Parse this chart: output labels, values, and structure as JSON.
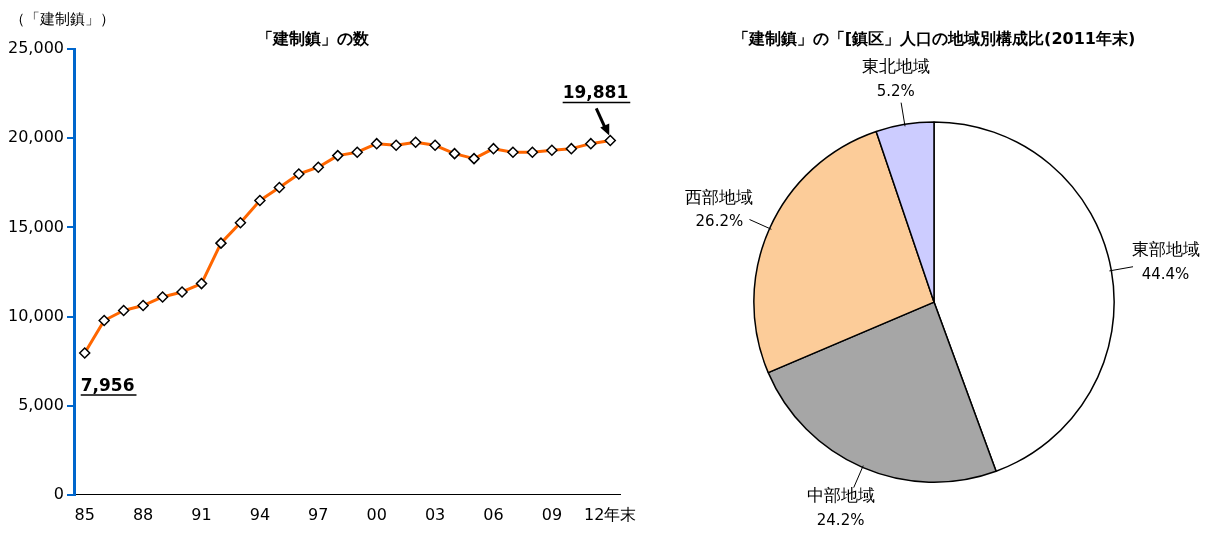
{
  "chart_data": [
    {
      "type": "line",
      "title": "「建制鎮」の数",
      "ylabel": "（「建制鎮」）",
      "categories": [
        "85",
        null,
        null,
        "88",
        null,
        null,
        "91",
        null,
        null,
        "94",
        null,
        null,
        "97",
        null,
        null,
        "00",
        null,
        null,
        "03",
        null,
        null,
        "06",
        null,
        null,
        "09",
        null,
        null,
        "12年末"
      ],
      "series": [
        {
          "color": "#ff6600",
          "values": [
            7956,
            9780,
            10340,
            10620,
            11100,
            11380,
            11850,
            14120,
            15260,
            16510,
            17240,
            18000,
            18380,
            19030,
            19220,
            19700,
            19610,
            19780,
            19610,
            19140,
            18860,
            19420,
            19220,
            19220,
            19330,
            19420,
            19700,
            19881
          ],
          "value_labels": [
            "7,956",
            null,
            null,
            null,
            null,
            null,
            null,
            null,
            null,
            null,
            null,
            null,
            null,
            null,
            null,
            null,
            null,
            null,
            null,
            null,
            null,
            null,
            null,
            null,
            null,
            null,
            null,
            "19,881"
          ]
        }
      ],
      "ylim": [
        0,
        25000
      ],
      "yticks": [
        {
          "value": 0,
          "label": "0"
        },
        {
          "value": 5000,
          "label": "5,000"
        },
        {
          "value": 10000,
          "label": "10,000"
        },
        {
          "value": 15000,
          "label": "15,000"
        },
        {
          "value": 20000,
          "label": "20,000"
        },
        {
          "value": 25000,
          "label": "25,000"
        }
      ],
      "marker": "diamond",
      "grid": false,
      "legend": false
    },
    {
      "type": "pie",
      "title": "「建制鎮」の「[鎮区」人口の地域別構成比(2011年末)",
      "categories": [
        "東部地域",
        "中部地域",
        "西部地域",
        "東北地域"
      ],
      "values": [
        44.4,
        24.2,
        26.2,
        5.2
      ],
      "value_labels": [
        "44.4%",
        "24.2%",
        "26.2%",
        "5.2%"
      ],
      "colors": [
        "#ffffff",
        "#a6a6a6",
        "#fccc99",
        "#ccccff"
      ],
      "legend": false
    }
  ]
}
